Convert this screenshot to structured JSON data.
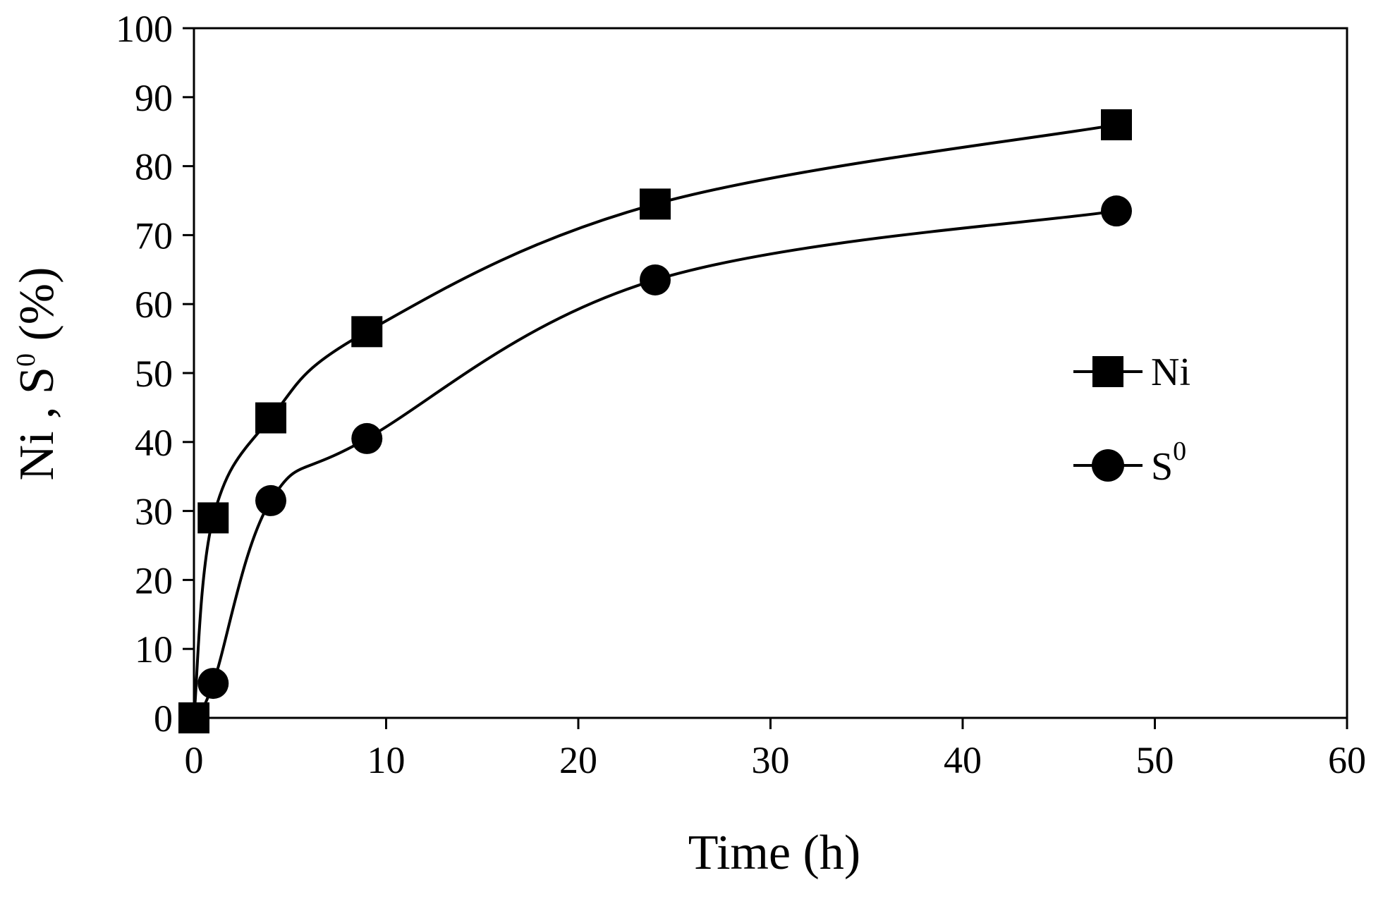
{
  "chart_data": {
    "type": "line",
    "title": "",
    "xlabel": "Time (h)",
    "ylabel": "Ni , S",
    "ylabel_superscript": "0",
    "ylabel_suffix": " (%)",
    "xlim": [
      0,
      60
    ],
    "ylim": [
      0,
      100
    ],
    "xticks": [
      0,
      10,
      20,
      30,
      40,
      50,
      60
    ],
    "yticks": [
      0,
      10,
      20,
      30,
      40,
      50,
      60,
      70,
      80,
      90,
      100
    ],
    "grid": false,
    "legend_position": "right",
    "series": [
      {
        "name": "Ni",
        "marker": "square",
        "x": [
          0,
          1,
          4,
          9,
          24,
          48
        ],
        "y": [
          0,
          29,
          43.5,
          56,
          74.5,
          86
        ]
      },
      {
        "name": "S",
        "name_superscript": "0",
        "marker": "circle",
        "x": [
          0,
          1,
          4,
          9,
          24,
          48
        ],
        "y": [
          0,
          5,
          31.5,
          40.5,
          63.5,
          73.5
        ]
      }
    ],
    "colors": {
      "line": "#000000",
      "marker": "#000000",
      "axis": "#000000"
    }
  }
}
